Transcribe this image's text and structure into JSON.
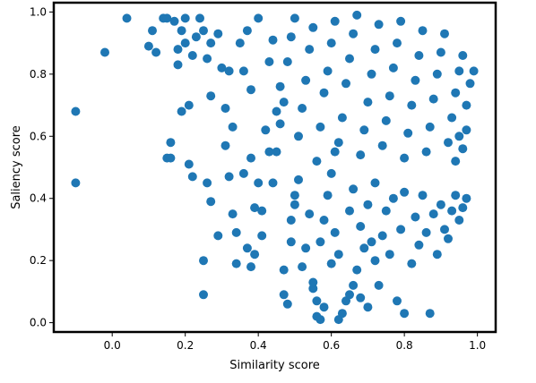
{
  "chart_data": {
    "type": "scatter",
    "title": "",
    "xlabel": "Similarity score",
    "ylabel": "Saliency score",
    "xlim": [
      -0.16,
      1.05
    ],
    "ylim": [
      -0.03,
      1.03
    ],
    "x_ticks": [
      0.0,
      0.2,
      0.4,
      0.6,
      0.8,
      1.0
    ],
    "x_tick_labels": [
      "0.0",
      "0.2",
      "0.4",
      "0.6",
      "0.8",
      "1.0"
    ],
    "y_ticks": [
      0.0,
      0.2,
      0.4,
      0.6,
      0.8,
      1.0
    ],
    "y_tick_labels": [
      "0.0",
      "0.2",
      "0.4",
      "0.6",
      "0.8",
      "1.0"
    ],
    "grid": false,
    "legend": "none",
    "marker_color": "#1f77b4",
    "series": [
      {
        "name": "",
        "points": [
          [
            -0.1,
            0.68
          ],
          [
            -0.1,
            0.45
          ],
          [
            -0.02,
            0.87
          ],
          [
            0.04,
            0.98
          ],
          [
            0.1,
            0.89
          ],
          [
            0.12,
            0.87
          ],
          [
            0.11,
            0.94
          ],
          [
            0.14,
            0.98
          ],
          [
            0.15,
            0.98
          ],
          [
            0.17,
            0.97
          ],
          [
            0.15,
            0.53
          ],
          [
            0.16,
            0.53
          ],
          [
            0.16,
            0.58
          ],
          [
            0.18,
            0.83
          ],
          [
            0.18,
            0.88
          ],
          [
            0.19,
            0.94
          ],
          [
            0.19,
            0.68
          ],
          [
            0.21,
            0.7
          ],
          [
            0.21,
            0.51
          ],
          [
            0.22,
            0.47
          ],
          [
            0.2,
            0.98
          ],
          [
            0.2,
            0.9
          ],
          [
            0.22,
            0.86
          ],
          [
            0.23,
            0.92
          ],
          [
            0.24,
            0.98
          ],
          [
            0.25,
            0.94
          ],
          [
            0.26,
            0.85
          ],
          [
            0.27,
            0.9
          ],
          [
            0.27,
            0.73
          ],
          [
            0.26,
            0.45
          ],
          [
            0.27,
            0.39
          ],
          [
            0.25,
            0.2
          ],
          [
            0.25,
            0.09
          ],
          [
            0.29,
            0.28
          ],
          [
            0.29,
            0.93
          ],
          [
            0.3,
            0.82
          ],
          [
            0.31,
            0.57
          ],
          [
            0.32,
            0.47
          ],
          [
            0.33,
            0.35
          ],
          [
            0.34,
            0.29
          ],
          [
            0.33,
            0.63
          ],
          [
            0.32,
            0.81
          ],
          [
            0.31,
            0.69
          ],
          [
            0.34,
            0.19
          ],
          [
            0.37,
            0.24
          ],
          [
            0.38,
            0.18
          ],
          [
            0.36,
            0.48
          ],
          [
            0.38,
            0.53
          ],
          [
            0.39,
            0.37
          ],
          [
            0.39,
            0.22
          ],
          [
            0.4,
            0.45
          ],
          [
            0.41,
            0.36
          ],
          [
            0.41,
            0.28
          ],
          [
            0.38,
            0.75
          ],
          [
            0.36,
            0.81
          ],
          [
            0.35,
            0.9
          ],
          [
            0.37,
            0.94
          ],
          [
            0.4,
            0.98
          ],
          [
            0.42,
            0.62
          ],
          [
            0.43,
            0.55
          ],
          [
            0.43,
            0.84
          ],
          [
            0.44,
            0.91
          ],
          [
            0.45,
            0.68
          ],
          [
            0.46,
            0.76
          ],
          [
            0.47,
            0.17
          ],
          [
            0.48,
            0.06
          ],
          [
            0.47,
            0.09
          ],
          [
            0.49,
            0.33
          ],
          [
            0.49,
            0.26
          ],
          [
            0.5,
            0.41
          ],
          [
            0.51,
            0.46
          ],
          [
            0.5,
            0.38
          ],
          [
            0.52,
            0.18
          ],
          [
            0.53,
            0.24
          ],
          [
            0.54,
            0.35
          ],
          [
            0.55,
            0.11
          ],
          [
            0.55,
            0.13
          ],
          [
            0.56,
            0.07
          ],
          [
            0.56,
            0.02
          ],
          [
            0.57,
            0.01
          ],
          [
            0.58,
            0.05
          ],
          [
            0.57,
            0.26
          ],
          [
            0.58,
            0.33
          ],
          [
            0.59,
            0.41
          ],
          [
            0.6,
            0.19
          ],
          [
            0.6,
            0.48
          ],
          [
            0.61,
            0.55
          ],
          [
            0.61,
            0.29
          ],
          [
            0.62,
            0.22
          ],
          [
            0.62,
            0.01
          ],
          [
            0.63,
            0.03
          ],
          [
            0.64,
            0.07
          ],
          [
            0.65,
            0.09
          ],
          [
            0.65,
            0.36
          ],
          [
            0.66,
            0.12
          ],
          [
            0.66,
            0.43
          ],
          [
            0.67,
            0.17
          ],
          [
            0.68,
            0.08
          ],
          [
            0.68,
            0.31
          ],
          [
            0.69,
            0.24
          ],
          [
            0.7,
            0.05
          ],
          [
            0.7,
            0.38
          ],
          [
            0.71,
            0.26
          ],
          [
            0.72,
            0.2
          ],
          [
            0.72,
            0.45
          ],
          [
            0.73,
            0.12
          ],
          [
            0.74,
            0.28
          ],
          [
            0.75,
            0.36
          ],
          [
            0.76,
            0.22
          ],
          [
            0.77,
            0.4
          ],
          [
            0.78,
            0.07
          ],
          [
            0.79,
            0.3
          ],
          [
            0.8,
            0.03
          ],
          [
            0.8,
            0.42
          ],
          [
            0.82,
            0.19
          ],
          [
            0.83,
            0.34
          ],
          [
            0.84,
            0.25
          ],
          [
            0.85,
            0.41
          ],
          [
            0.86,
            0.29
          ],
          [
            0.87,
            0.03
          ],
          [
            0.88,
            0.35
          ],
          [
            0.89,
            0.22
          ],
          [
            0.9,
            0.38
          ],
          [
            0.91,
            0.3
          ],
          [
            0.92,
            0.27
          ],
          [
            0.93,
            0.36
          ],
          [
            0.94,
            0.41
          ],
          [
            0.95,
            0.33
          ],
          [
            0.96,
            0.37
          ],
          [
            0.97,
            0.4
          ],
          [
            0.44,
            0.45
          ],
          [
            0.45,
            0.55
          ],
          [
            0.46,
            0.64
          ],
          [
            0.47,
            0.71
          ],
          [
            0.48,
            0.84
          ],
          [
            0.49,
            0.92
          ],
          [
            0.5,
            0.98
          ],
          [
            0.51,
            0.6
          ],
          [
            0.52,
            0.69
          ],
          [
            0.53,
            0.78
          ],
          [
            0.54,
            0.88
          ],
          [
            0.55,
            0.95
          ],
          [
            0.56,
            0.52
          ],
          [
            0.57,
            0.63
          ],
          [
            0.58,
            0.74
          ],
          [
            0.59,
            0.81
          ],
          [
            0.6,
            0.9
          ],
          [
            0.61,
            0.97
          ],
          [
            0.62,
            0.58
          ],
          [
            0.63,
            0.66
          ],
          [
            0.64,
            0.77
          ],
          [
            0.65,
            0.85
          ],
          [
            0.66,
            0.93
          ],
          [
            0.67,
            0.99
          ],
          [
            0.68,
            0.54
          ],
          [
            0.69,
            0.62
          ],
          [
            0.7,
            0.71
          ],
          [
            0.71,
            0.8
          ],
          [
            0.72,
            0.88
          ],
          [
            0.73,
            0.96
          ],
          [
            0.74,
            0.57
          ],
          [
            0.75,
            0.65
          ],
          [
            0.76,
            0.73
          ],
          [
            0.77,
            0.82
          ],
          [
            0.78,
            0.9
          ],
          [
            0.79,
            0.97
          ],
          [
            0.8,
            0.53
          ],
          [
            0.81,
            0.61
          ],
          [
            0.82,
            0.7
          ],
          [
            0.83,
            0.78
          ],
          [
            0.84,
            0.86
          ],
          [
            0.85,
            0.94
          ],
          [
            0.86,
            0.55
          ],
          [
            0.87,
            0.63
          ],
          [
            0.88,
            0.72
          ],
          [
            0.89,
            0.8
          ],
          [
            0.9,
            0.87
          ],
          [
            0.91,
            0.93
          ],
          [
            0.92,
            0.58
          ],
          [
            0.93,
            0.66
          ],
          [
            0.94,
            0.74
          ],
          [
            0.95,
            0.81
          ],
          [
            0.96,
            0.86
          ],
          [
            0.97,
            0.7
          ],
          [
            0.98,
            0.77
          ],
          [
            0.99,
            0.81
          ],
          [
            0.97,
            0.62
          ],
          [
            0.96,
            0.56
          ],
          [
            0.95,
            0.6
          ],
          [
            0.94,
            0.52
          ]
        ]
      }
    ]
  }
}
